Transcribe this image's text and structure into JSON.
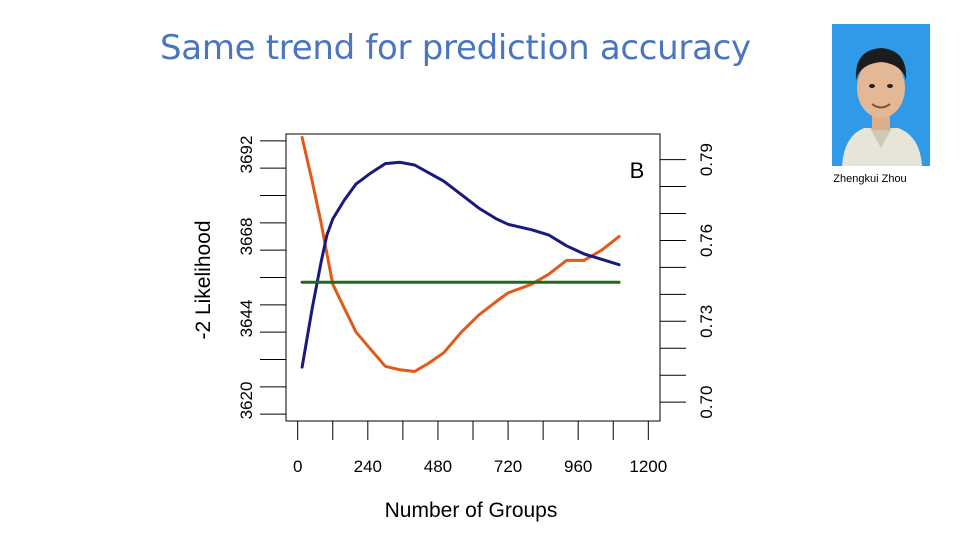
{
  "slide": {
    "title": "Same trend for prediction accuracy"
  },
  "person": {
    "caption": "Zhengkui Zhou"
  },
  "colors": {
    "title": "#4a76c0",
    "likelihood": "#e05a1a",
    "accuracy": "#1a1a7e",
    "baseline": "#1e6b1e"
  },
  "chart_data": {
    "type": "line",
    "panel_label": "B",
    "xlabel": "Number of Groups",
    "ylabel": "-2 Likelihood",
    "xlim": [
      -40,
      1240
    ],
    "x_ticks": [
      0,
      240,
      480,
      720,
      960,
      1200
    ],
    "ylim": [
      3614,
      3698
    ],
    "y_ticks": [
      3620,
      3644,
      3668,
      3692
    ],
    "y2lim": [
      0.693,
      0.7995
    ],
    "y2_ticks": [
      "0.70",
      "0.73",
      "0.76",
      "0.79"
    ],
    "series": [
      {
        "key": "likelihood",
        "axis": "left",
        "x": [
          15,
          50,
          80,
          100,
          120,
          160,
          200,
          250,
          300,
          350,
          400,
          450,
          500,
          560,
          620,
          680,
          720,
          800,
          860,
          920,
          980,
          1040,
          1100
        ],
        "y": [
          3697,
          3684,
          3672,
          3663,
          3654,
          3647,
          3640,
          3635,
          3630,
          3629,
          3628.5,
          3631,
          3634,
          3640,
          3645,
          3649,
          3651.5,
          3654,
          3657,
          3661,
          3661,
          3664,
          3668
        ]
      },
      {
        "key": "accuracy",
        "axis": "right",
        "x": [
          15,
          50,
          80,
          100,
          120,
          160,
          200,
          250,
          300,
          350,
          400,
          450,
          500,
          560,
          620,
          680,
          720,
          800,
          860,
          920,
          980,
          1040,
          1100
        ],
        "y": [
          0.713,
          0.735,
          0.752,
          0.762,
          0.768,
          0.775,
          0.781,
          0.785,
          0.7885,
          0.789,
          0.788,
          0.785,
          0.782,
          0.777,
          0.772,
          0.768,
          0.766,
          0.764,
          0.762,
          0.758,
          0.755,
          0.753,
          0.751
        ]
      },
      {
        "key": "baseline",
        "axis": "right",
        "x": [
          15,
          1100
        ],
        "y": [
          0.7445,
          0.7445
        ]
      }
    ]
  }
}
